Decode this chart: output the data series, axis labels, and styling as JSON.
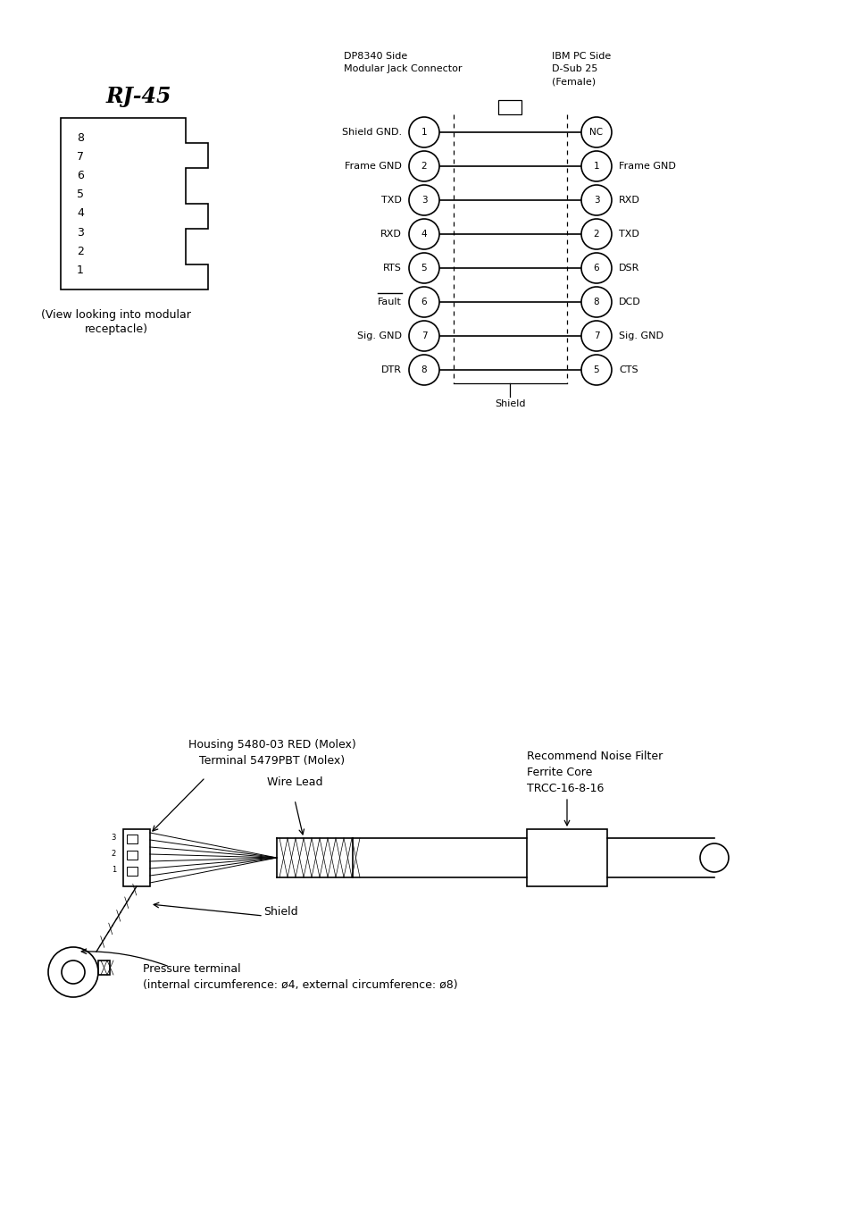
{
  "bg_color": "#ffffff",
  "text_color": "#000000",
  "rj45_title": "RJ-45",
  "rj45_pins": [
    "8",
    "7",
    "6",
    "5",
    "4",
    "3",
    "2",
    "1"
  ],
  "rj45_caption": "(View looking into modular\n   receptacle)",
  "dp_header": "DP8340 Side\nModular Jack Connector",
  "ibm_header": "IBM PC Side\nD-Sub 25\n(Female)",
  "shield_label": "Shield",
  "dp_pins": [
    {
      "num": 1,
      "label": "Shield GND.",
      "overline": false
    },
    {
      "num": 2,
      "label": "Frame GND",
      "overline": false
    },
    {
      "num": 3,
      "label": "TXD",
      "overline": false
    },
    {
      "num": 4,
      "label": "RXD",
      "overline": false
    },
    {
      "num": 5,
      "label": "RTS",
      "overline": false
    },
    {
      "num": 6,
      "label": "Fault",
      "overline": true
    },
    {
      "num": 7,
      "label": "Sig. GND",
      "overline": false
    },
    {
      "num": 8,
      "label": "DTR",
      "overline": false
    }
  ],
  "ibm_pins": [
    {
      "num": "NC",
      "label": "",
      "overline": false
    },
    {
      "num": 1,
      "label": "Frame GND",
      "overline": false
    },
    {
      "num": 3,
      "label": "RXD",
      "overline": false
    },
    {
      "num": 2,
      "label": "TXD",
      "overline": false
    },
    {
      "num": 6,
      "label": "DSR",
      "overline": false
    },
    {
      "num": 8,
      "label": "DCD",
      "overline": false
    },
    {
      "num": 7,
      "label": "Sig. GND",
      "overline": false
    },
    {
      "num": 5,
      "label": "CTS",
      "overline": false
    }
  ],
  "cable_label1": "Housing 5480-03 RED (Molex)",
  "cable_label2": "Terminal 5479PBT (Molex)",
  "cable_label3": "Wire Lead",
  "cable_label4": "Shield",
  "cable_label5": "Recommend Noise Filter\nFerrite Core\nTRCC-16-8-16",
  "cable_label6": "Pressure terminal\n(internal circumference: ø4, external circumference: ø8)"
}
